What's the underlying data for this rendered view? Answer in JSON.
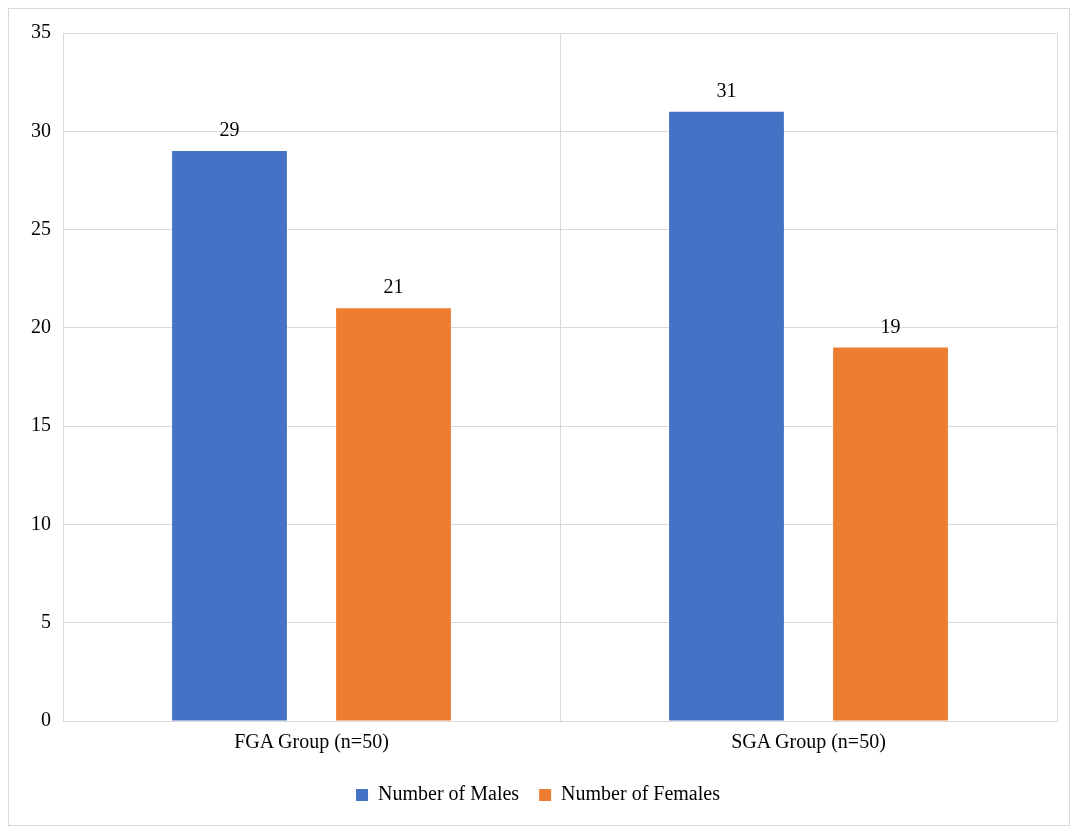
{
  "chart_data": {
    "type": "bar",
    "categories": [
      "FGA Group (n=50)",
      "SGA Group (n=50)"
    ],
    "series": [
      {
        "name": "Number of Males",
        "color": "#4472c4",
        "values": [
          29,
          31
        ]
      },
      {
        "name": "Number of Females",
        "color": "#ed7d31",
        "values": [
          21,
          19
        ]
      }
    ],
    "ylim": [
      0,
      35
    ],
    "yticks": [
      0,
      5,
      10,
      15,
      20,
      25,
      30,
      35
    ],
    "grid": true,
    "legend": "bottom",
    "data_labels": true
  }
}
